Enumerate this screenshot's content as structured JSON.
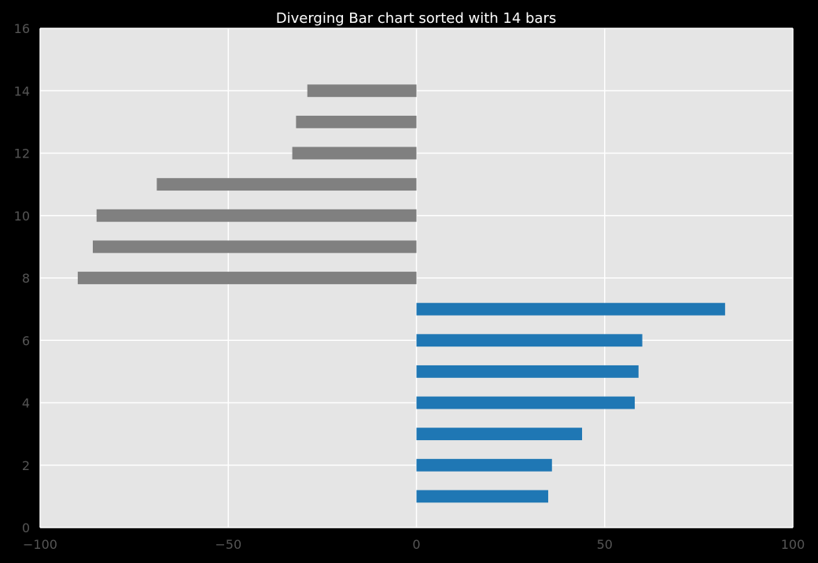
{
  "chart_data": {
    "type": "bar",
    "orientation": "horizontal",
    "title": "Diverging Bar chart sorted with 14 bars",
    "xlabel": "",
    "ylabel": "",
    "xlim": [
      -100,
      100
    ],
    "ylim": [
      0,
      16
    ],
    "x_ticks": [
      -100,
      -50,
      0,
      50,
      100
    ],
    "x_tick_labels": [
      "−100",
      "−50",
      "0",
      "50",
      "100"
    ],
    "y_ticks": [
      0,
      2,
      4,
      6,
      8,
      10,
      12,
      14,
      16
    ],
    "y_tick_labels": [
      "0",
      "2",
      "4",
      "6",
      "8",
      "10",
      "12",
      "14",
      "16"
    ],
    "grid": true,
    "bars": [
      {
        "y": 1,
        "value": 35
      },
      {
        "y": 2,
        "value": 36
      },
      {
        "y": 3,
        "value": 44
      },
      {
        "y": 4,
        "value": 58
      },
      {
        "y": 5,
        "value": 59
      },
      {
        "y": 6,
        "value": 60
      },
      {
        "y": 7,
        "value": 82
      },
      {
        "y": 8,
        "value": -90
      },
      {
        "y": 9,
        "value": -86
      },
      {
        "y": 10,
        "value": -85
      },
      {
        "y": 11,
        "value": -69
      },
      {
        "y": 12,
        "value": -33
      },
      {
        "y": 13,
        "value": -32
      },
      {
        "y": 14,
        "value": -29
      }
    ],
    "colors": {
      "positive": "#1f77b4",
      "negative": "#808080",
      "plot_background": "#e5e5e5",
      "grid": "#ffffff",
      "figure_background": "#000000"
    }
  }
}
